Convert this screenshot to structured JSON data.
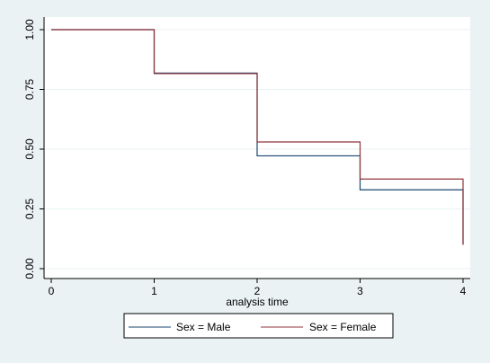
{
  "chart_data": {
    "type": "line",
    "step": true,
    "title": "",
    "xlabel": "analysis time",
    "ylabel": "",
    "xlim": [
      0,
      4
    ],
    "ylim": [
      0,
      1
    ],
    "x_ticks": [
      0,
      1,
      2,
      3,
      4
    ],
    "x_tick_labels": [
      "0",
      "1",
      "2",
      "3",
      "4"
    ],
    "y_ticks": [
      0,
      0.25,
      0.5,
      0.75,
      1
    ],
    "y_tick_labels": [
      "0.00",
      "0.25",
      "0.50",
      "0.75",
      "1.00"
    ],
    "grid": "horizontal",
    "legend_position": "bottom",
    "series": [
      {
        "name": "Sex = Male",
        "color": "#1a476f",
        "x": [
          0,
          1,
          2,
          3,
          4,
          4
        ],
        "y": [
          1.0,
          0.818,
          0.472,
          0.33,
          0.33,
          0.1
        ]
      },
      {
        "name": "Sex = Female",
        "color": "#90353b",
        "x": [
          0,
          1,
          2,
          3,
          4,
          4
        ],
        "y": [
          1.0,
          0.816,
          0.53,
          0.375,
          0.375,
          0.1
        ]
      }
    ]
  },
  "colors": {
    "outer_background": "#eaf2f3",
    "plot_background": "#ffffff",
    "gridline": "#eaf2f3"
  }
}
